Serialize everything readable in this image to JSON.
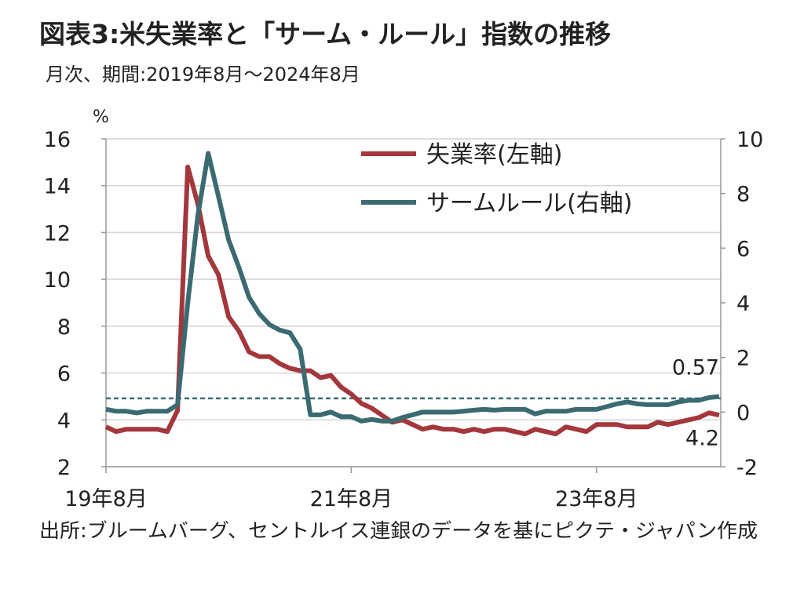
{
  "chart_data": {
    "type": "line",
    "title": "図表3:米失業率と「サーム・ルール」指数の推移",
    "subtitle": "月次、期間:2019年8月～2024年8月",
    "y_unit": "%",
    "source": "出所:ブルームバーグ、セントルイス連銀のデータを基にピクテ・ジャパン作成",
    "categories": [
      "19年8月",
      null,
      null,
      null,
      null,
      null,
      null,
      null,
      null,
      null,
      null,
      null,
      null,
      null,
      null,
      null,
      null,
      null,
      null,
      null,
      null,
      null,
      null,
      null,
      "21年8月",
      null,
      null,
      null,
      null,
      null,
      null,
      null,
      null,
      null,
      null,
      null,
      null,
      null,
      null,
      null,
      null,
      null,
      null,
      null,
      null,
      null,
      null,
      null,
      "23年8月",
      null,
      null,
      null,
      null,
      null,
      null,
      null,
      null,
      null,
      null,
      null,
      null
    ],
    "series": [
      {
        "name": "失業率(左軸)",
        "color": "#a3373b",
        "axis": "y",
        "values": [
          3.7,
          3.5,
          3.6,
          3.6,
          3.6,
          3.6,
          3.5,
          4.4,
          14.8,
          13.2,
          11.0,
          10.2,
          8.4,
          7.8,
          6.9,
          6.7,
          6.7,
          6.4,
          6.2,
          6.1,
          6.1,
          5.8,
          5.9,
          5.4,
          5.1,
          4.7,
          4.5,
          4.2,
          3.9,
          4.0,
          3.8,
          3.6,
          3.7,
          3.6,
          3.6,
          3.5,
          3.6,
          3.5,
          3.6,
          3.6,
          3.5,
          3.4,
          3.6,
          3.5,
          3.4,
          3.7,
          3.6,
          3.5,
          3.8,
          3.8,
          3.8,
          3.7,
          3.7,
          3.7,
          3.9,
          3.8,
          3.9,
          4.0,
          4.1,
          4.3,
          4.2
        ]
      },
      {
        "name": "サームルール(右軸)",
        "color": "#3c6a72",
        "axis": "y2",
        "values": [
          0.1,
          0.03,
          0.03,
          -0.03,
          0.03,
          0.03,
          0.03,
          0.27,
          4.0,
          7.23,
          9.47,
          7.9,
          6.3,
          5.3,
          4.2,
          3.6,
          3.2,
          3.0,
          2.9,
          2.3,
          -0.1,
          -0.1,
          0.0,
          -0.17,
          -0.17,
          -0.33,
          -0.27,
          -0.33,
          -0.33,
          -0.2,
          -0.1,
          0.0,
          0.0,
          0.0,
          0.0,
          0.03,
          0.07,
          0.1,
          0.07,
          0.1,
          0.1,
          0.1,
          -0.07,
          0.03,
          0.03,
          0.03,
          0.1,
          0.1,
          0.1,
          0.2,
          0.3,
          0.37,
          0.3,
          0.27,
          0.27,
          0.27,
          0.37,
          0.43,
          0.43,
          0.53,
          0.57
        ]
      }
    ],
    "threshold": {
      "value": 0.5,
      "axis": "y2",
      "color": "#3c6a72"
    },
    "annotations": [
      {
        "text": "0.57",
        "series": 1
      },
      {
        "text": "4.2",
        "series": 0
      }
    ],
    "ylim": [
      2,
      16
    ],
    "yticks": [
      2,
      4,
      6,
      8,
      10,
      12,
      14,
      16
    ],
    "y2lim": [
      -2,
      10
    ],
    "y2ticks": [
      -2,
      0,
      2,
      4,
      6,
      8,
      10
    ],
    "grid": true,
    "legend": "top"
  }
}
